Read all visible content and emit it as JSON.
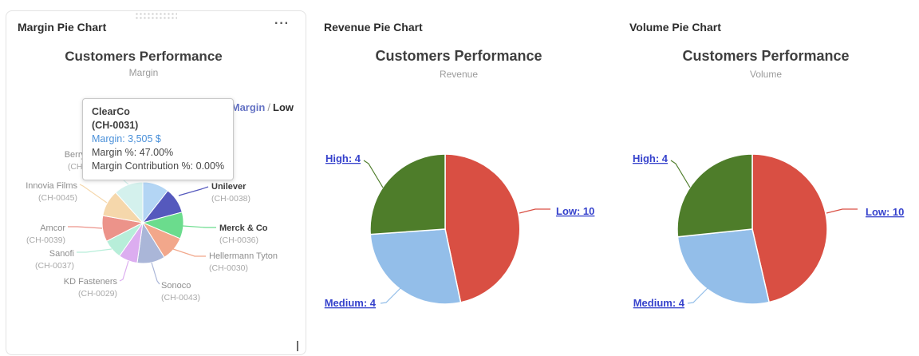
{
  "cards": {
    "margin": {
      "window_title": "Margin Pie Chart",
      "menu_icon": "···",
      "chart_title": "Customers Performance",
      "chart_subtitle": "Margin",
      "breadcrumb": {
        "link_label": "Margin",
        "separator": "/",
        "current": "Low"
      },
      "tooltip": {
        "name": "ClearCo",
        "code": "(CH-0031)",
        "value_line": "Margin: 3,505 $",
        "pct_line": "Margin %: 47.00%",
        "contrib_line": "Margin Contribution %: 0.00%"
      }
    },
    "revenue": {
      "window_title": "Revenue Pie Chart",
      "chart_title": "Customers Performance",
      "chart_subtitle": "Revenue"
    },
    "volume": {
      "window_title": "Volume Pie Chart",
      "chart_title": "Customers Performance",
      "chart_subtitle": "Volume"
    }
  },
  "chart_data": [
    {
      "id": "margin-pie",
      "type": "pie",
      "title": "Customers Performance",
      "subtitle": "Margin",
      "drilldown_group": "Low",
      "legend_position": "none",
      "slices": [
        {
          "name": "ClearCo",
          "code": "(CH-0031)",
          "color": "#66abe9",
          "angle_deg": 38,
          "hovered": true,
          "label_hidden_by_tooltip": true,
          "tooltip_values": {
            "margin": "3,505 $",
            "margin_pct": "47.00%",
            "margin_contribution_pct": "0.00%"
          }
        },
        {
          "name": "Unilever",
          "code": "(CH-0038)",
          "color": "#5559bd",
          "angle_deg": 37,
          "label_emphasis": true
        },
        {
          "name": "Merck & Co",
          "code": "(CH-0036)",
          "color": "#6bdc8d",
          "angle_deg": 38,
          "label_emphasis": true
        },
        {
          "name": "Hellermann Tyton",
          "code": "(CH-0030)",
          "color": "#f2a78b",
          "angle_deg": 35
        },
        {
          "name": "Sonoco",
          "code": "(CH-0043)",
          "color": "#aab6d8",
          "angle_deg": 40
        },
        {
          "name": "KD Fasteners",
          "code": "(CH-0029)",
          "color": "#dcadf0",
          "angle_deg": 27
        },
        {
          "name": "Sanofi",
          "code": "(CH-0037)",
          "color": "#b7eed9",
          "angle_deg": 28
        },
        {
          "name": "Amcor",
          "code": "(CH-0039)",
          "color": "#ec938a",
          "angle_deg": 37
        },
        {
          "name": "Innovia Films",
          "code": "(CH-0045)",
          "color": "#f5d7ab",
          "angle_deg": 38
        },
        {
          "name": "Berry",
          "code": "(CH-",
          "color": "#d4f1ed",
          "angle_deg": 42
        }
      ]
    },
    {
      "id": "revenue-pie",
      "type": "pie",
      "title": "Customers Performance",
      "subtitle": "Revenue",
      "legend_position": "none",
      "slices": [
        {
          "name": "Low",
          "count": 10,
          "label": "Low: 10",
          "color": "#d94f43",
          "angle_deg": 168,
          "share_pct_est": 46.7
        },
        {
          "name": "Medium",
          "count": 4,
          "label": "Medium: 4",
          "color": "#93bee9",
          "angle_deg": 98,
          "share_pct_est": 27.2
        },
        {
          "name": "High",
          "count": 4,
          "label": "High: 4",
          "color": "#4e7d2a",
          "angle_deg": 94,
          "share_pct_est": 26.1
        }
      ]
    },
    {
      "id": "volume-pie",
      "type": "pie",
      "title": "Customers Performance",
      "subtitle": "Volume",
      "legend_position": "none",
      "slices": [
        {
          "name": "Low",
          "count": 10,
          "label": "Low: 10",
          "color": "#d94f43",
          "angle_deg": 167,
          "share_pct_est": 46.4
        },
        {
          "name": "Medium",
          "count": 4,
          "label": "Medium: 4",
          "color": "#93bee9",
          "angle_deg": 97,
          "share_pct_est": 26.9
        },
        {
          "name": "High",
          "count": 4,
          "label": "High: 4",
          "color": "#4e7d2a",
          "angle_deg": 96,
          "share_pct_est": 26.7
        }
      ]
    }
  ]
}
